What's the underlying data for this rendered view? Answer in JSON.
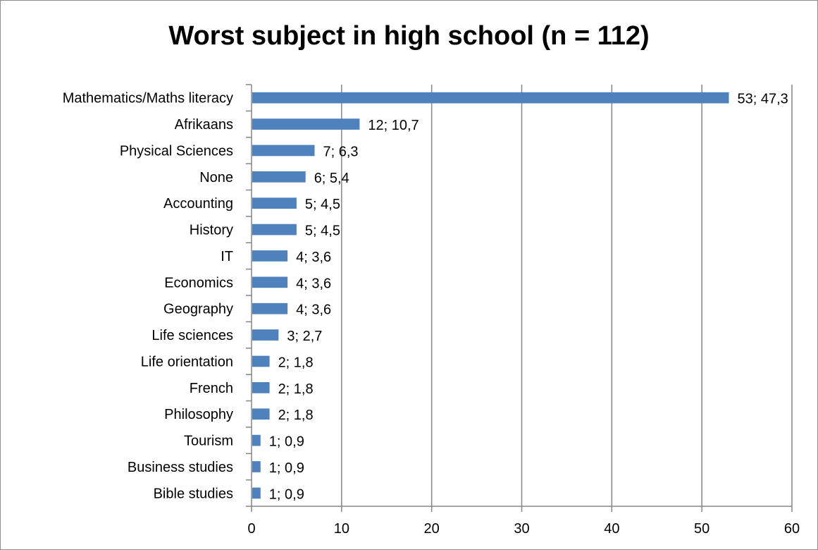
{
  "chart_data": {
    "type": "bar",
    "orientation": "horizontal",
    "title": "Worst subject in high school (n = 112)",
    "categories": [
      "Mathematics/Maths literacy",
      "Afrikaans",
      "Physical Sciences",
      "None",
      "Accounting",
      "History",
      "IT",
      "Economics",
      "Geography",
      "Life sciences",
      "Life orientation",
      "French",
      "Philosophy",
      "Tourism",
      "Business studies",
      "Bible studies"
    ],
    "values": [
      53,
      12,
      7,
      6,
      5,
      5,
      4,
      4,
      4,
      3,
      2,
      2,
      2,
      1,
      1,
      1
    ],
    "data_labels": [
      "53; 47,3",
      "12; 10,7",
      "7; 6,3",
      "6; 5,4",
      "5; 4,5",
      "5; 4,5",
      "4; 3,6",
      "4; 3,6",
      "4; 3,6",
      "3; 2,7",
      "2; 1,8",
      "2; 1,8",
      "2; 1,8",
      "1; 0,9",
      "1; 0,9",
      "1; 0,9"
    ],
    "xlim": [
      0,
      60
    ],
    "xticks": [
      "0",
      "10",
      "20",
      "30",
      "40",
      "50",
      "60"
    ],
    "grid": "vertical",
    "legend": "none",
    "bar_color": "#4f81bd",
    "grid_color": "#868686"
  }
}
